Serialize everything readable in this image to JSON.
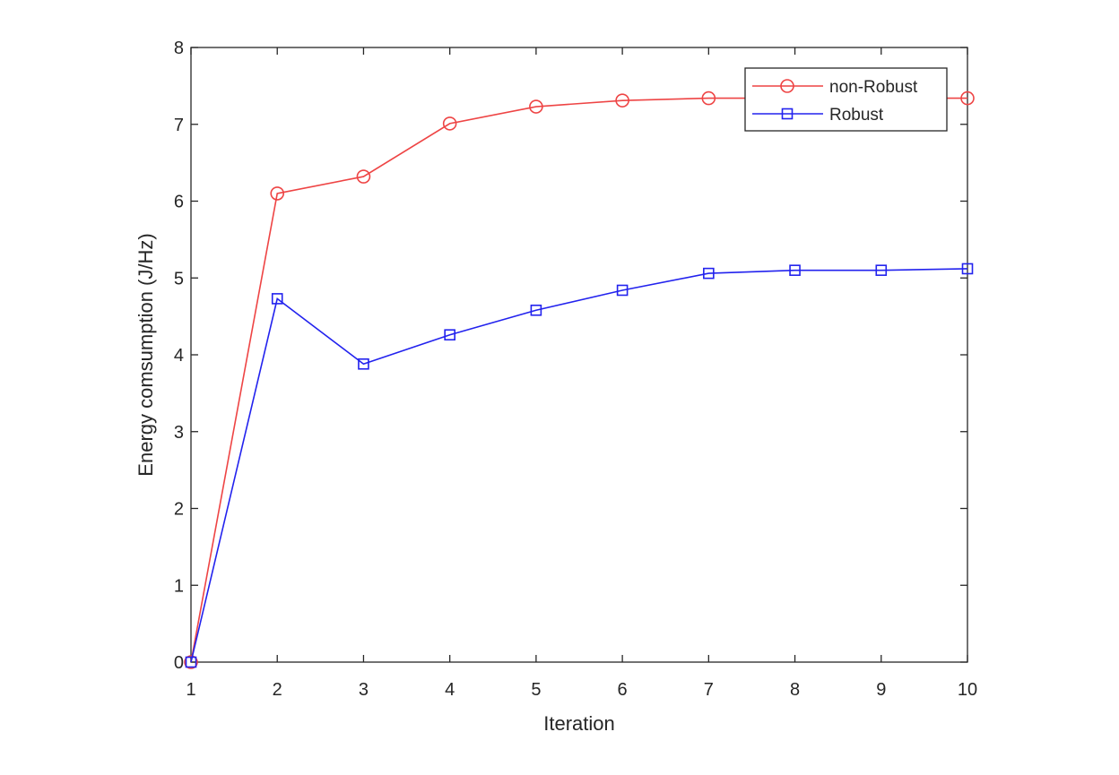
{
  "chart_data": {
    "type": "line",
    "title": "",
    "xlabel": "Iteration",
    "ylabel": "Energy comsumption (J/Hz)",
    "x": [
      1,
      2,
      3,
      4,
      5,
      6,
      7,
      8,
      9,
      10
    ],
    "xlim": [
      1,
      10
    ],
    "ylim": [
      0,
      8
    ],
    "xticks": [
      1,
      2,
      3,
      4,
      5,
      6,
      7,
      8,
      9,
      10
    ],
    "yticks": [
      0,
      1,
      2,
      3,
      4,
      5,
      6,
      7,
      8
    ],
    "grid": false,
    "legend_position": "northeast",
    "series": [
      {
        "name": "non-Robust",
        "color": "#ee4444",
        "marker": "circle",
        "values": [
          0,
          6.1,
          6.32,
          7.01,
          7.23,
          7.31,
          7.34,
          7.34,
          7.34,
          7.34
        ]
      },
      {
        "name": "Robust",
        "color": "#2222ee",
        "marker": "square",
        "values": [
          0,
          4.73,
          3.88,
          4.26,
          4.58,
          4.84,
          5.06,
          5.1,
          5.1,
          5.12
        ]
      }
    ]
  }
}
